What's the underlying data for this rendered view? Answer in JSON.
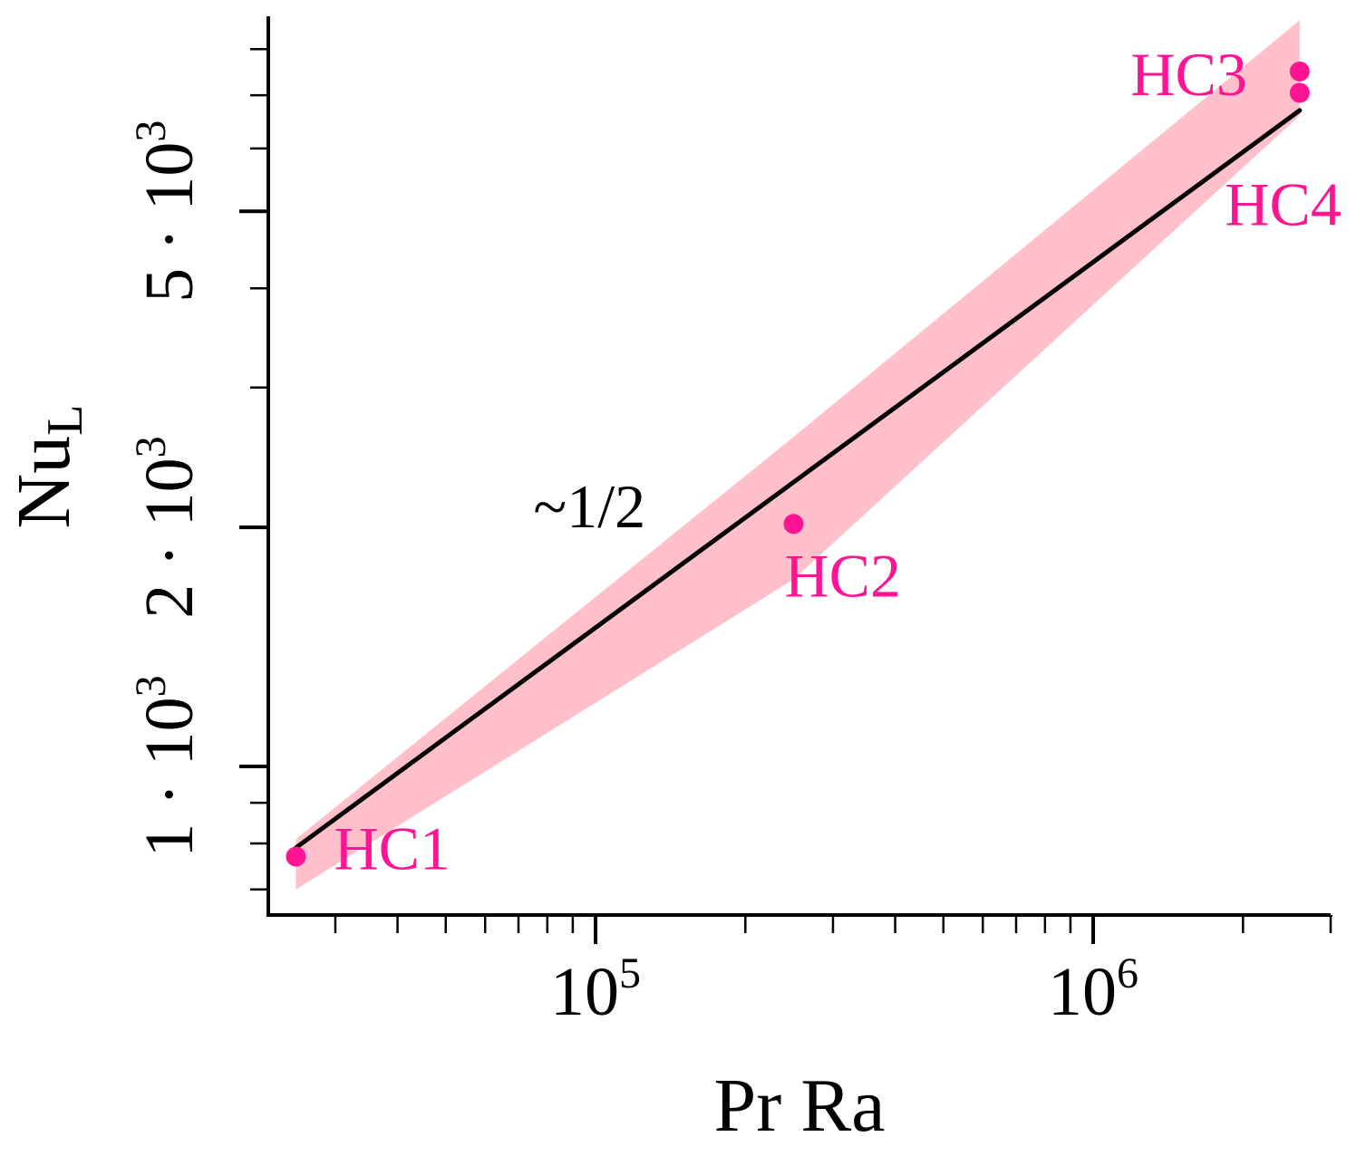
{
  "chart_data": {
    "type": "scatter",
    "title": "",
    "xlabel": "Pr Ra",
    "ylabel": {
      "main": "Nu",
      "sub": "L"
    },
    "x_scale": "log",
    "y_scale": "log",
    "xlim": [
      22000,
      3000000
    ],
    "ylim": [
      650,
      8800
    ],
    "grid": false,
    "legend": "none",
    "colors": {
      "accent": "#ff1493",
      "band": "#ffc0cb",
      "line": "#000000",
      "axis": "#000000"
    },
    "x_ticks": [
      {
        "value": 100000,
        "base": "10",
        "exp": "5"
      },
      {
        "value": 1000000,
        "base": "10",
        "exp": "6"
      }
    ],
    "y_ticks": [
      {
        "value": 1000,
        "coef": "1",
        "dot": "·",
        "base": "10",
        "exp": "3"
      },
      {
        "value": 2000,
        "coef": "2",
        "dot": "·",
        "base": "10",
        "exp": "3"
      },
      {
        "value": 5000,
        "coef": "5",
        "dot": "·",
        "base": "10",
        "exp": "3"
      }
    ],
    "points": [
      {
        "name": "HC1",
        "x": 25000,
        "y": 770
      },
      {
        "name": "HC2",
        "x": 250000,
        "y": 2020
      },
      {
        "name": "HC3",
        "x": 2600000,
        "y": 7500
      },
      {
        "name": "HC4",
        "x": 2600000,
        "y": 7050
      }
    ],
    "fit_line": {
      "label": "~1/2",
      "label_at": {
        "x": 75000,
        "y": 2000
      },
      "from": {
        "x": 25000,
        "y": 790
      },
      "to": {
        "x": 2600000,
        "y": 6700
      }
    },
    "band": {
      "upper": [
        {
          "x": 25000,
          "y": 810
        },
        {
          "x": 250000,
          "y": 2600
        },
        {
          "x": 2600000,
          "y": 8700
        }
      ],
      "lower": [
        {
          "x": 25000,
          "y": 700
        },
        {
          "x": 250000,
          "y": 1720
        },
        {
          "x": 2600000,
          "y": 6600
        }
      ]
    }
  }
}
